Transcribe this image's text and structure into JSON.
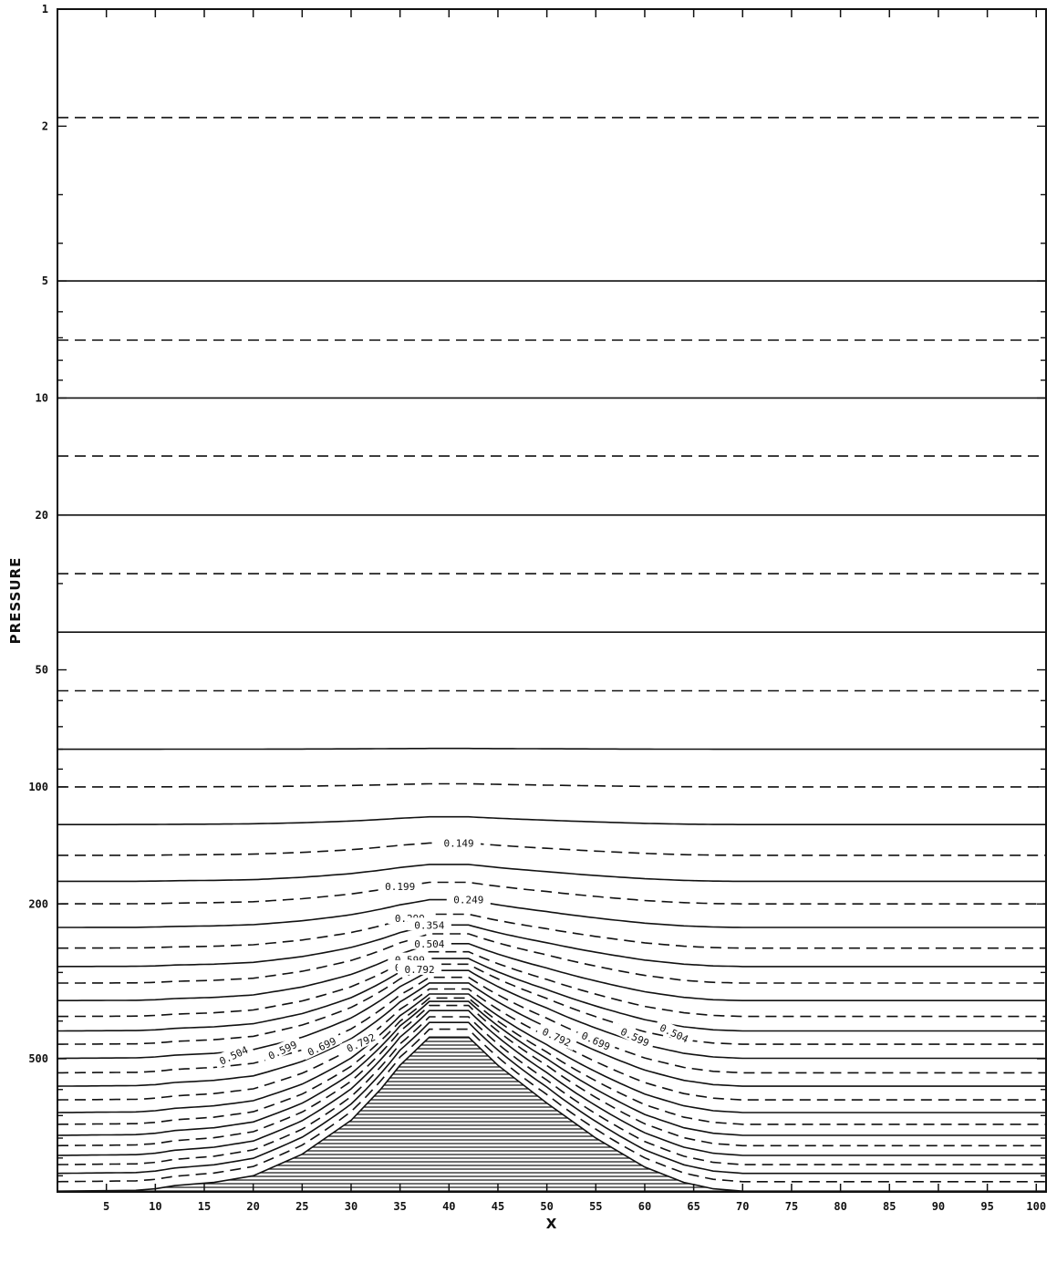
{
  "chart_data": {
    "type": "line",
    "subtype": "contour",
    "xlabel": "X",
    "ylabel": "PRESSURE",
    "xlim": [
      0,
      101
    ],
    "ylim": [
      1,
      1100
    ],
    "y_scale": "log",
    "y_inverted": true,
    "grid": false,
    "x_ticks": [
      5,
      10,
      15,
      20,
      25,
      30,
      35,
      40,
      45,
      50,
      55,
      60,
      65,
      70,
      75,
      80,
      85,
      90,
      95,
      100
    ],
    "y_ticks": [
      1,
      2,
      5,
      10,
      20,
      50,
      100,
      200,
      500
    ],
    "terrain": {
      "fill": "horizontal-hatch",
      "profile": [
        [
          0,
          1095
        ],
        [
          8,
          1090
        ],
        [
          10,
          1080
        ],
        [
          12,
          1060
        ],
        [
          16,
          1040
        ],
        [
          20,
          1000
        ],
        [
          25,
          880
        ],
        [
          30,
          720
        ],
        [
          33,
          600
        ],
        [
          35,
          520
        ],
        [
          38,
          440
        ],
        [
          42,
          440
        ],
        [
          45,
          520
        ],
        [
          50,
          650
        ],
        [
          55,
          800
        ],
        [
          60,
          950
        ],
        [
          64,
          1040
        ],
        [
          67,
          1080
        ],
        [
          70,
          1095
        ],
        [
          101,
          1095
        ]
      ]
    },
    "contours": [
      {
        "level": 1.9,
        "style": "dashed",
        "amp": 0
      },
      {
        "level": 5,
        "style": "solid",
        "amp": 0
      },
      {
        "level": 7.1,
        "style": "dashed",
        "amp": 0
      },
      {
        "level": 10,
        "style": "solid",
        "amp": 0
      },
      {
        "level": 14.1,
        "style": "dashed",
        "amp": 0
      },
      {
        "level": 20,
        "style": "solid",
        "amp": 0
      },
      {
        "level": 28.3,
        "style": "dashed",
        "amp": 0
      },
      {
        "level": 40,
        "style": "solid",
        "amp": 0
      },
      {
        "level": 56.6,
        "style": "dashed",
        "amp": 0
      },
      {
        "level": 80,
        "style": "solid",
        "amp": 0.005
      },
      {
        "level": 100,
        "style": "dashed",
        "amp": 0.02
      },
      {
        "level": 125,
        "style": "solid",
        "amp": 0.05
      },
      {
        "level": 150,
        "style": "dashed",
        "amp": 0.08,
        "label": "0.149",
        "label_x": 41
      },
      {
        "level": 175,
        "style": "solid",
        "amp": 0.11
      },
      {
        "level": 200,
        "style": "dashed",
        "amp": 0.14,
        "label": "0.199",
        "label_x": 35
      },
      {
        "level": 230,
        "style": "solid",
        "amp": 0.18,
        "label": "0.249",
        "label_x": 42
      },
      {
        "level": 260,
        "style": "dashed",
        "amp": 0.22,
        "label": "0.299",
        "label_x": 36
      },
      {
        "level": 290,
        "style": "solid",
        "amp": 0.27,
        "label": "0.354",
        "label_x": 38
      },
      {
        "level": 320,
        "style": "dashed",
        "amp": 0.32
      },
      {
        "level": 355,
        "style": "solid",
        "amp": 0.37,
        "label": "0.504",
        "label_x": 38
      },
      {
        "level": 390,
        "style": "dashed",
        "amp": 0.42,
        "label": "0.599",
        "label_x": 36
      },
      {
        "level": 425,
        "style": "solid",
        "amp": 0.47,
        "label": "0.699",
        "label_x": 36
      },
      {
        "level": 460,
        "style": "dashed",
        "amp": 0.52,
        "label": "0.792",
        "label_x": 37
      },
      {
        "level": 500,
        "style": "solid",
        "amp": 0.57
      },
      {
        "level": 545,
        "style": "dashed",
        "amp": 0.62
      },
      {
        "level": 590,
        "style": "solid",
        "amp": 0.67
      },
      {
        "level": 640,
        "style": "dashed",
        "amp": 0.72
      },
      {
        "level": 690,
        "style": "solid",
        "amp": 0.77
      },
      {
        "level": 740,
        "style": "dashed",
        "amp": 0.82
      },
      {
        "level": 790,
        "style": "solid",
        "amp": 0.87
      },
      {
        "level": 840,
        "style": "dashed",
        "amp": 0.91
      },
      {
        "level": 890,
        "style": "solid",
        "amp": 0.94
      },
      {
        "level": 940,
        "style": "dashed",
        "amp": 0.96
      },
      {
        "level": 990,
        "style": "solid",
        "amp": 0.98
      },
      {
        "level": 1040,
        "style": "dashed",
        "amp": 0.99
      }
    ],
    "slope_labels": [
      {
        "label": "0.504",
        "x": 18,
        "y": 490
      },
      {
        "label": "0.599",
        "x": 23,
        "y": 475
      },
      {
        "label": "0.699",
        "x": 27,
        "y": 465
      },
      {
        "label": "0.792",
        "x": 31,
        "y": 455
      },
      {
        "label": "0.792",
        "x": 51,
        "y": 440
      },
      {
        "label": "0.699",
        "x": 55,
        "y": 450
      },
      {
        "label": "0.599",
        "x": 59,
        "y": 440
      },
      {
        "label": "0.504",
        "x": 63,
        "y": 430
      }
    ]
  }
}
